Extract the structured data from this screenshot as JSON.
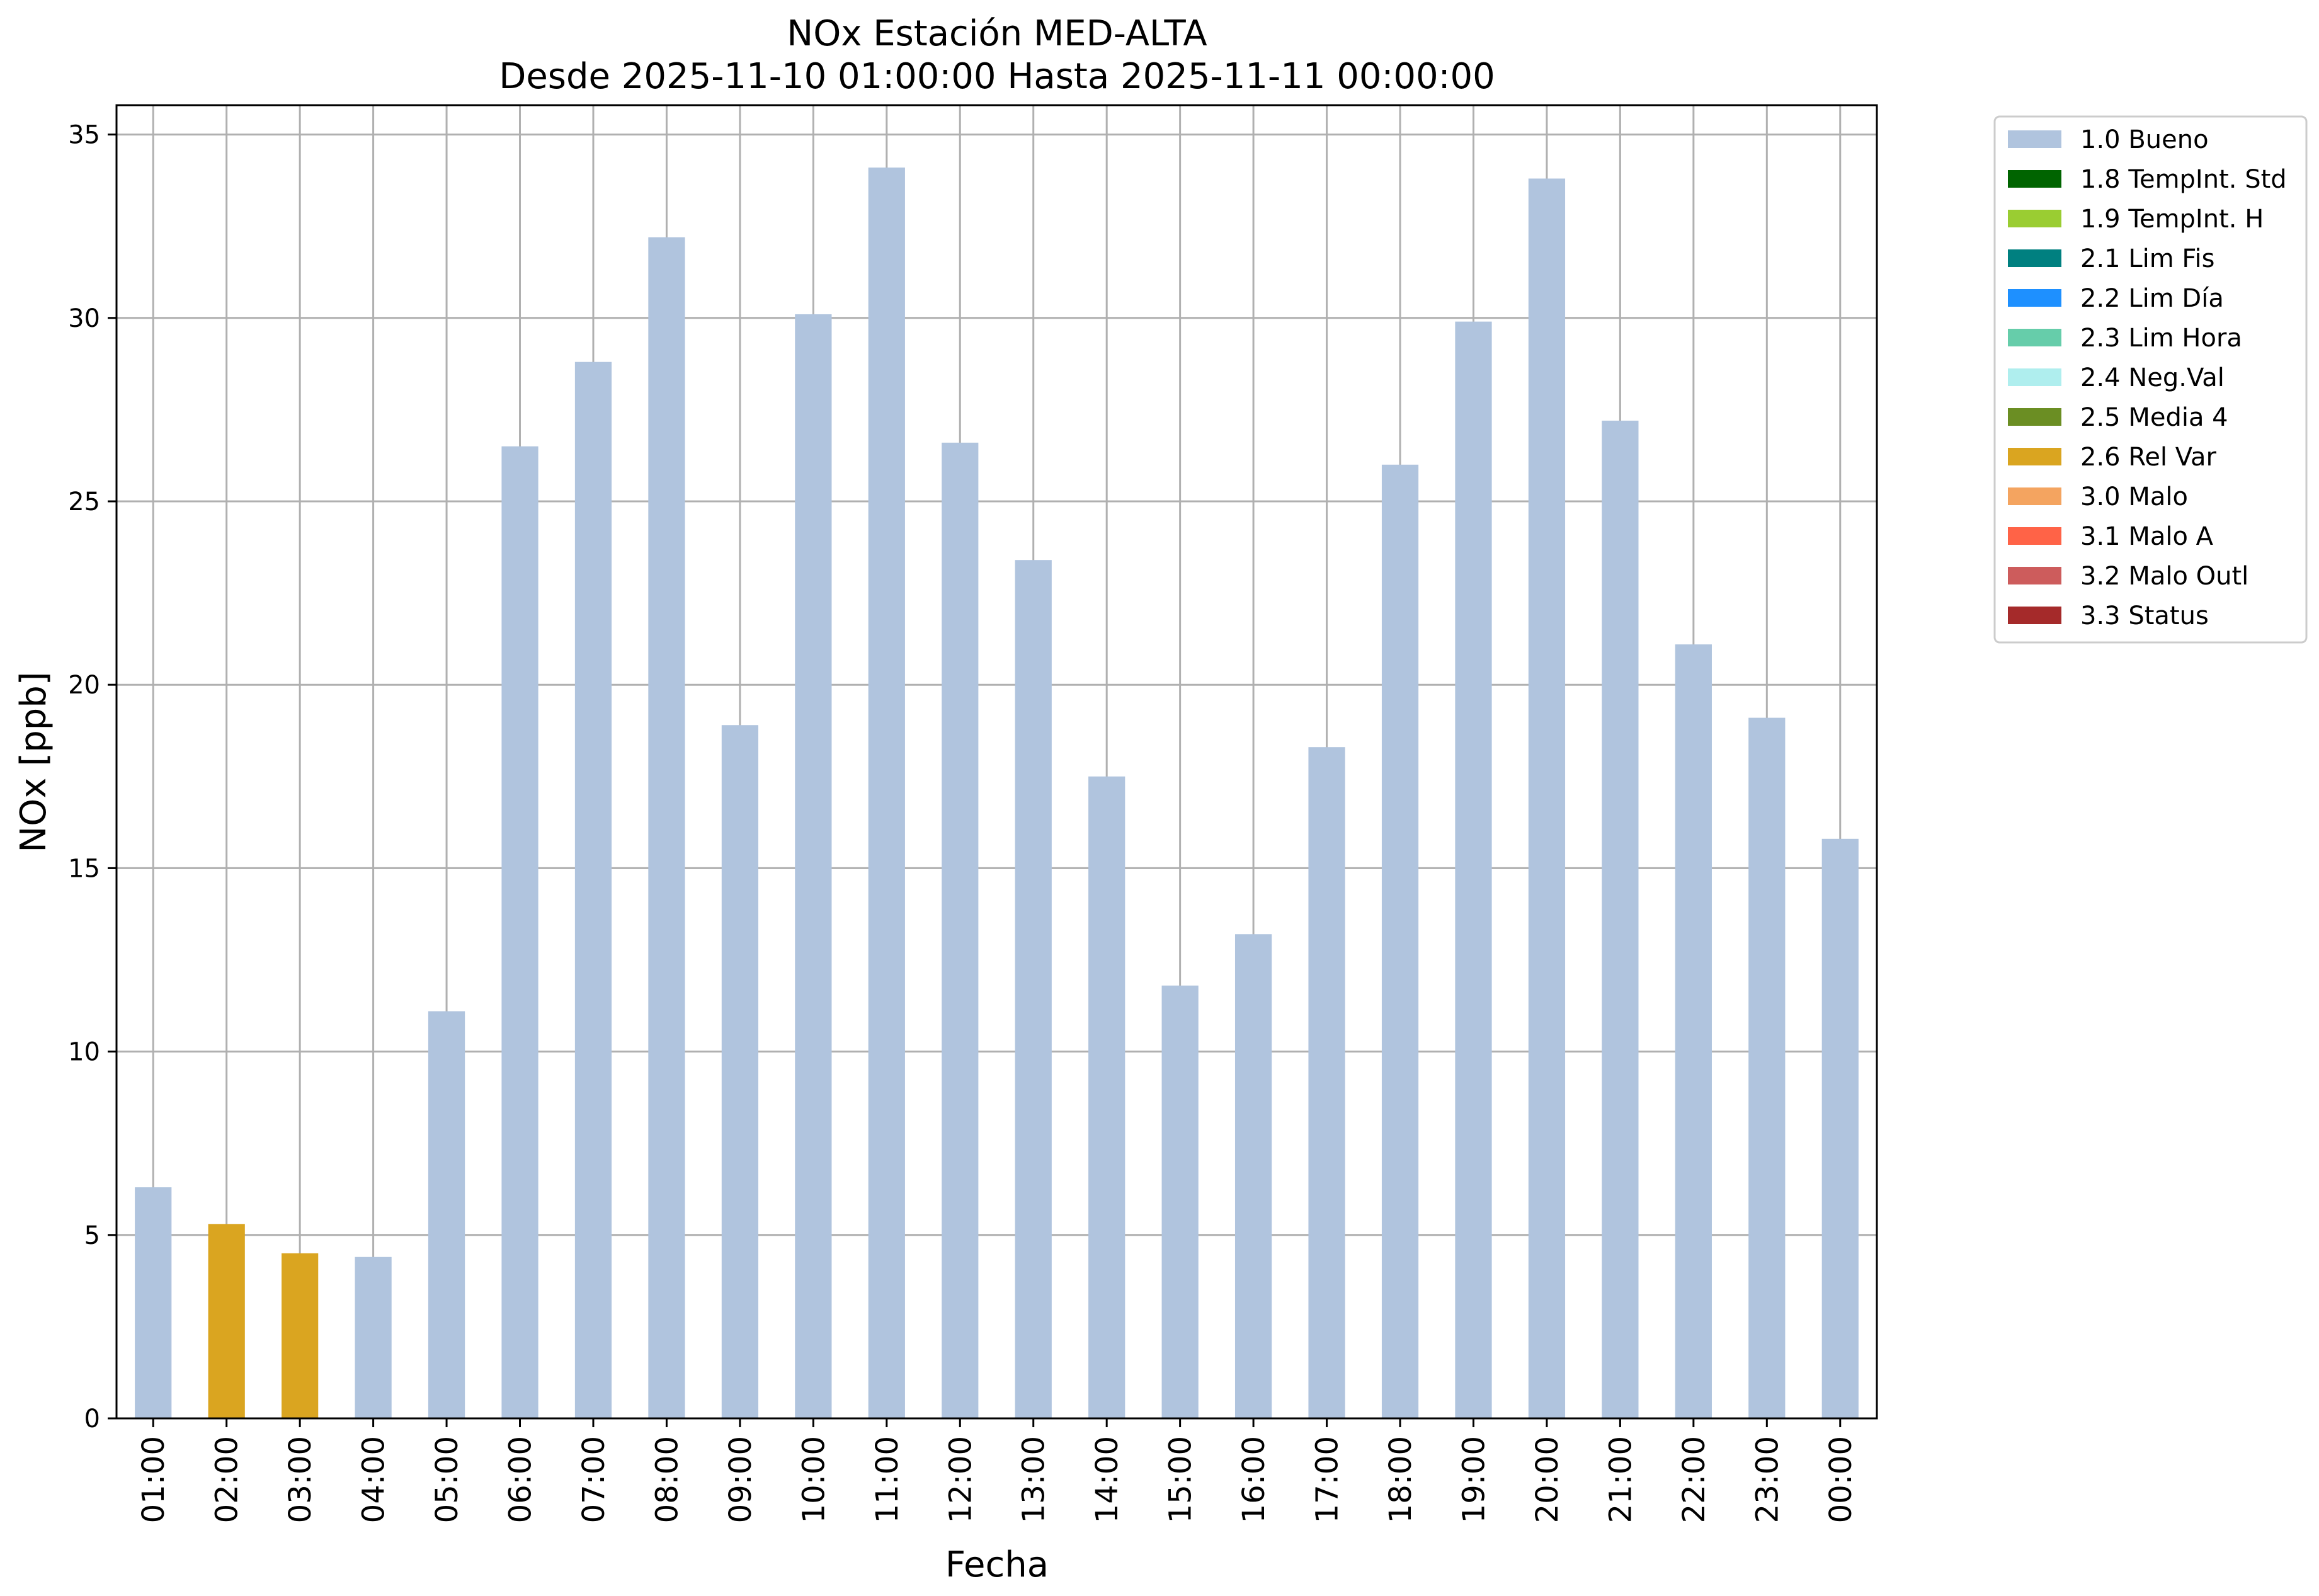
{
  "chart_data": {
    "type": "bar",
    "title": "NOx Estación MED-ALTA",
    "subtitle": "Desde 2025-11-10 01:00:00 Hasta 2025-11-11 00:00:00",
    "xlabel": "Fecha",
    "ylabel": "NOx [ppb]",
    "ylim": [
      0,
      35.8
    ],
    "yticks": [
      "0",
      "5",
      "10",
      "15",
      "20",
      "25",
      "30",
      "35"
    ],
    "grid": true,
    "legend_position": "outside-top-right",
    "categories": [
      "01:00",
      "02:00",
      "03:00",
      "04:00",
      "05:00",
      "06:00",
      "07:00",
      "08:00",
      "09:00",
      "10:00",
      "11:00",
      "12:00",
      "13:00",
      "14:00",
      "15:00",
      "16:00",
      "17:00",
      "18:00",
      "19:00",
      "20:00",
      "21:00",
      "22:00",
      "23:00",
      "00:00"
    ],
    "values": [
      6.3,
      5.3,
      4.5,
      4.4,
      11.1,
      26.5,
      28.8,
      32.2,
      18.9,
      30.1,
      34.1,
      26.6,
      23.4,
      17.5,
      11.8,
      13.2,
      18.3,
      26.0,
      29.9,
      33.8,
      27.2,
      21.1,
      19.1,
      15.8
    ],
    "flags": [
      "1.0 Bueno",
      "2.6 Rel Var",
      "2.6 Rel Var",
      "1.0 Bueno",
      "1.0 Bueno",
      "1.0 Bueno",
      "1.0 Bueno",
      "1.0 Bueno",
      "1.0 Bueno",
      "1.0 Bueno",
      "1.0 Bueno",
      "1.0 Bueno",
      "1.0 Bueno",
      "1.0 Bueno",
      "1.0 Bueno",
      "1.0 Bueno",
      "1.0 Bueno",
      "1.0 Bueno",
      "1.0 Bueno",
      "1.0 Bueno",
      "1.0 Bueno",
      "1.0 Bueno",
      "1.0 Bueno",
      "1.0 Bueno"
    ],
    "legend": [
      {
        "label": "1.0 Bueno",
        "color": "#b0c4de"
      },
      {
        "label": "1.8 TempInt. Std",
        "color": "#006400"
      },
      {
        "label": "1.9 TempInt. H",
        "color": "#9acd32"
      },
      {
        "label": "2.1 Lim Fis",
        "color": "#008080"
      },
      {
        "label": "2.2 Lim Día",
        "color": "#1e90ff"
      },
      {
        "label": "2.3 Lim Hora",
        "color": "#66cdaa"
      },
      {
        "label": "2.4 Neg.Val",
        "color": "#afeeee"
      },
      {
        "label": "2.5 Media 4",
        "color": "#6b8e23"
      },
      {
        "label": "2.6 Rel Var",
        "color": "#daa520"
      },
      {
        "label": "3.0 Malo",
        "color": "#f4a460"
      },
      {
        "label": "3.1 Malo A",
        "color": "#ff6347"
      },
      {
        "label": "3.2 Malo Outl",
        "color": "#cd5c5c"
      },
      {
        "label": "3.3 Status",
        "color": "#a52a2a"
      }
    ]
  }
}
